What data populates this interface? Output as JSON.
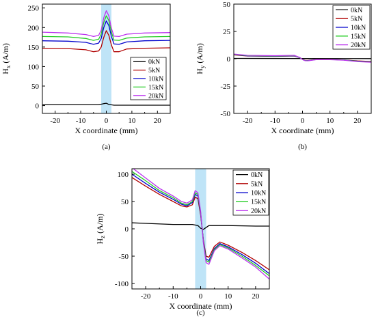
{
  "chart_data": [
    {
      "type": "line",
      "panel_label": "(a)",
      "xlabel": "X coordinate (mm)",
      "ylabel_main": "H",
      "ylabel_sub": "x",
      "ylabel_unit": "(A/m)",
      "xlim": [
        -25,
        25
      ],
      "ylim": [
        -20,
        260
      ],
      "xticks": [
        -20,
        -10,
        0,
        10,
        20
      ],
      "yticks": [
        0,
        50,
        100,
        150,
        200,
        250
      ],
      "xtick_labels": [
        "-20",
        "-10",
        "0",
        "10",
        "20"
      ],
      "ytick_labels": [
        "0",
        "50",
        "100",
        "150",
        "200",
        "250"
      ],
      "band": [
        -2,
        2
      ],
      "legend": "right",
      "series": [
        {
          "name": "0kN",
          "x": [
            -25,
            -10,
            -3,
            -1,
            0,
            1,
            3,
            10,
            25
          ],
          "y": [
            2,
            2,
            2,
            5,
            6,
            3,
            1,
            1,
            1
          ]
        },
        {
          "name": "5kN",
          "x": [
            -25,
            -15,
            -8,
            -5,
            -3,
            -2,
            -1,
            0,
            1,
            2,
            3,
            5,
            8,
            15,
            25
          ],
          "y": [
            147,
            146,
            143,
            138,
            140,
            150,
            175,
            192,
            180,
            155,
            138,
            138,
            145,
            147,
            148
          ]
        },
        {
          "name": "10kN",
          "x": [
            -25,
            -15,
            -8,
            -5,
            -3,
            -2,
            -1,
            0,
            1,
            2,
            3,
            5,
            8,
            15,
            25
          ],
          "y": [
            166,
            165,
            162,
            157,
            160,
            172,
            200,
            217,
            205,
            177,
            158,
            157,
            163,
            166,
            167
          ]
        },
        {
          "name": "15kN",
          "x": [
            -25,
            -15,
            -8,
            -5,
            -3,
            -2,
            -1,
            0,
            1,
            2,
            3,
            5,
            8,
            15,
            25
          ],
          "y": [
            177,
            176,
            172,
            167,
            170,
            183,
            213,
            230,
            218,
            188,
            168,
            167,
            173,
            176,
            177
          ]
        },
        {
          "name": "20kN",
          "x": [
            -25,
            -15,
            -8,
            -5,
            -3,
            -2,
            -1,
            0,
            1,
            2,
            3,
            5,
            8,
            15,
            25
          ],
          "y": [
            188,
            186,
            182,
            177,
            180,
            193,
            225,
            243,
            230,
            198,
            178,
            177,
            183,
            186,
            187
          ]
        }
      ]
    },
    {
      "type": "line",
      "panel_label": "(b)",
      "xlabel": "X coordinate (mm)",
      "ylabel_main": "H",
      "ylabel_sub": "y",
      "ylabel_unit": "(A/m)",
      "xlim": [
        -25,
        25
      ],
      "ylim": [
        -50,
        50
      ],
      "xticks": [
        -20,
        -10,
        0,
        10,
        20
      ],
      "yticks": [
        -50,
        -25,
        0,
        25,
        50
      ],
      "xtick_labels": [
        "-20",
        "-10",
        "0",
        "10",
        "20"
      ],
      "ytick_labels": [
        "-50",
        "-25",
        "0",
        "25",
        "50"
      ],
      "legend": "top-right",
      "series": [
        {
          "name": "0kN",
          "x": [
            -25,
            0,
            25
          ],
          "y": [
            0.3,
            0.2,
            0.1
          ]
        },
        {
          "name": "5kN",
          "x": [
            -25,
            -20,
            -10,
            -3,
            -1,
            0,
            1,
            2,
            5,
            10,
            15,
            20,
            25
          ],
          "y": [
            3.5,
            2.5,
            2.2,
            2.5,
            1.0,
            -0.5,
            -1.5,
            -1.5,
            -0.5,
            -0.5,
            -1.0,
            -2.0,
            -2.5
          ]
        },
        {
          "name": "10kN",
          "x": [
            -25,
            -20,
            -10,
            -3,
            -1,
            0,
            1,
            2,
            5,
            10,
            15,
            20,
            25
          ],
          "y": [
            3.8,
            2.7,
            2.4,
            2.7,
            1.0,
            -0.6,
            -1.6,
            -1.7,
            -0.6,
            -0.6,
            -1.1,
            -2.2,
            -2.8
          ]
        },
        {
          "name": "15kN",
          "x": [
            -25,
            -20,
            -10,
            -3,
            -1,
            0,
            1,
            2,
            5,
            10,
            15,
            20,
            25
          ],
          "y": [
            4.0,
            2.9,
            2.6,
            2.9,
            1.1,
            -0.7,
            -1.7,
            -1.8,
            -0.7,
            -0.7,
            -1.2,
            -2.4,
            -3.0
          ]
        },
        {
          "name": "20kN",
          "x": [
            -25,
            -20,
            -10,
            -3,
            -1,
            0,
            1,
            2,
            5,
            10,
            15,
            20,
            25
          ],
          "y": [
            4.3,
            3.1,
            2.8,
            3.1,
            1.2,
            -0.8,
            -1.8,
            -1.9,
            -0.8,
            -0.8,
            -1.3,
            -2.6,
            -3.2
          ]
        }
      ]
    },
    {
      "type": "line",
      "panel_label": "(c)",
      "xlabel": "X coordinate (mm)",
      "ylabel_main": "H",
      "ylabel_sub": "z",
      "ylabel_unit": "(A/m)",
      "xlim": [
        -25,
        25
      ],
      "ylim": [
        -110,
        110
      ],
      "xticks": [
        -20,
        -10,
        0,
        10,
        20
      ],
      "yticks": [
        -100,
        -50,
        0,
        50,
        100
      ],
      "xtick_labels": [
        "-20",
        "-10",
        "0",
        "10",
        "20"
      ],
      "ytick_labels": [
        "-100",
        "-50",
        "0",
        "50",
        "100"
      ],
      "band": [
        -2,
        2
      ],
      "legend": "top-right",
      "series": [
        {
          "name": "0kN",
          "x": [
            -25,
            -20,
            -10,
            -3,
            -1,
            0,
            1,
            3,
            10,
            20,
            25
          ],
          "y": [
            11,
            10,
            8,
            8,
            6,
            1,
            -1,
            6,
            6,
            5,
            5
          ]
        },
        {
          "name": "5kN",
          "x": [
            -25,
            -20,
            -15,
            -10,
            -7,
            -5,
            -3,
            -2,
            -1,
            0,
            1,
            2,
            3,
            5,
            7,
            10,
            15,
            20,
            25
          ],
          "y": [
            94,
            78,
            63,
            50,
            42,
            40,
            44,
            58,
            55,
            25,
            -20,
            -50,
            -52,
            -32,
            -24,
            -30,
            -43,
            -58,
            -75
          ]
        },
        {
          "name": "10kN",
          "x": [
            -25,
            -20,
            -15,
            -10,
            -7,
            -5,
            -3,
            -2,
            -1,
            0,
            1,
            2,
            3,
            5,
            7,
            10,
            15,
            20,
            25
          ],
          "y": [
            100,
            83,
            67,
            54,
            45,
            42,
            48,
            63,
            60,
            28,
            -22,
            -55,
            -58,
            -36,
            -27,
            -33,
            -47,
            -63,
            -82
          ]
        },
        {
          "name": "15kN",
          "x": [
            -25,
            -20,
            -15,
            -10,
            -7,
            -5,
            -3,
            -2,
            -1,
            0,
            1,
            2,
            3,
            5,
            7,
            10,
            15,
            20,
            25
          ],
          "y": [
            105,
            88,
            70,
            57,
            47,
            44,
            50,
            66,
            63,
            30,
            -24,
            -58,
            -61,
            -38,
            -29,
            -35,
            -50,
            -67,
            -86
          ]
        },
        {
          "name": "20kN",
          "x": [
            -25,
            -20,
            -15,
            -10,
            -7,
            -5,
            -3,
            -2,
            -1,
            0,
            1,
            2,
            3,
            5,
            7,
            10,
            15,
            20,
            25
          ],
          "y": [
            112,
            93,
            74,
            60,
            50,
            47,
            53,
            70,
            66,
            32,
            -26,
            -62,
            -65,
            -40,
            -31,
            -37,
            -53,
            -70,
            -92
          ]
        }
      ]
    }
  ],
  "colors": {
    "0kN": "#000000",
    "5kN": "#b00000",
    "10kN": "#0000cc",
    "15kN": "#22cc22",
    "20kN": "#bb33ee",
    "band": "#bfe4f7"
  }
}
